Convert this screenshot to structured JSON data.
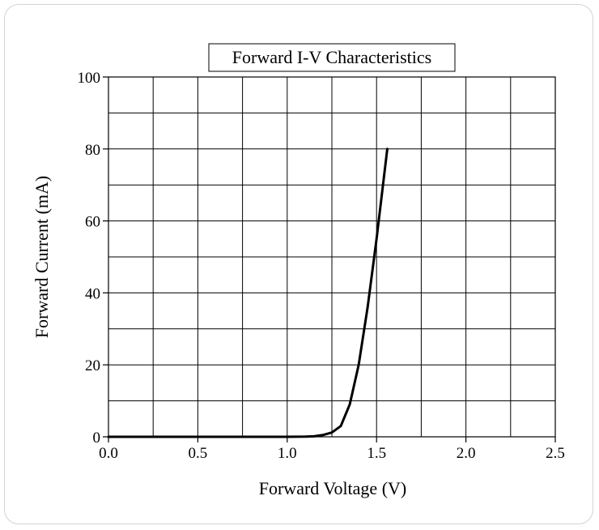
{
  "chart_data": {
    "type": "line",
    "title": "Forward I-V Characteristics",
    "xlabel": "Forward Voltage (V)",
    "ylabel": "Forward Current (mA)",
    "xlim": [
      0.0,
      2.5
    ],
    "ylim": [
      0,
      100
    ],
    "xticks": [
      "0.0",
      "0.5",
      "1.0",
      "1.5",
      "2.0",
      "2.5"
    ],
    "yticks": [
      "0",
      "20",
      "40",
      "60",
      "80",
      "100"
    ],
    "grid": true,
    "series": [
      {
        "x": [
          0.0,
          0.5,
          1.0,
          1.1,
          1.15,
          1.2,
          1.25,
          1.3,
          1.35,
          1.4,
          1.45,
          1.5,
          1.56
        ],
        "y": [
          0,
          0,
          0,
          0.05,
          0.15,
          0.5,
          1.2,
          3.0,
          9.0,
          20.0,
          36.0,
          55.0,
          80.0
        ]
      }
    ]
  }
}
